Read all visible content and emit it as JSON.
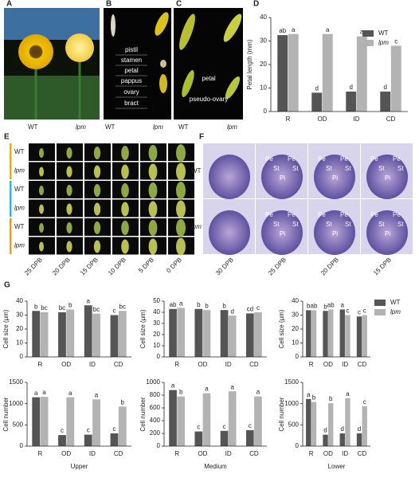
{
  "panels": {
    "A": {
      "letter": "A",
      "labels": [
        "WT",
        "lpm"
      ]
    },
    "B": {
      "letter": "B",
      "parts": [
        "pistil",
        "stamen",
        "petal",
        "pappus",
        "ovary",
        "bract"
      ],
      "labels": [
        "WT",
        "lpm"
      ]
    },
    "C": {
      "letter": "C",
      "parts": [
        "petal",
        "pseudo-ovary"
      ],
      "labels": [
        "WT",
        "lpm"
      ]
    },
    "E": {
      "letter": "E",
      "rows": [
        "WT",
        "lpm",
        "WT",
        "lpm",
        "WT",
        "lpm"
      ],
      "columns": [
        "25 DPB",
        "20 DPB",
        "15 DPB",
        "10 DPB",
        "5 DPB",
        "0 DPB"
      ]
    },
    "F": {
      "letter": "F",
      "rows": [
        "WT",
        "lpm"
      ],
      "columns": [
        "30 DPB",
        "25 DPB",
        "20 DPB",
        "15 DPB"
      ],
      "tissue_labels": [
        "Pe",
        "St",
        "Pi"
      ]
    },
    "G": {
      "letter": "G"
    }
  },
  "chart_data": [
    {
      "type": "bar",
      "letter": "D",
      "ylabel": "Petal length (mm)",
      "categories": [
        "R",
        "OD",
        "ID",
        "CD"
      ],
      "series": [
        {
          "name": "WT",
          "color": "#555555",
          "values": [
            32.5,
            8,
            8.5,
            8.5
          ],
          "letters": [
            "ab",
            "d",
            "d",
            "d"
          ]
        },
        {
          "name": "lpm",
          "color": "#b3b3b3",
          "values": [
            33,
            33,
            32,
            28
          ],
          "letters": [
            "a",
            "a",
            "a",
            "c"
          ]
        }
      ],
      "ylim": [
        0,
        40
      ],
      "yticks": [
        0,
        10,
        20,
        30,
        40
      ],
      "legend": "upper right"
    },
    {
      "type": "bar",
      "ylabel": "Cell size (μm)",
      "categories": [
        "R",
        "OD",
        "ID",
        "CD"
      ],
      "series": [
        {
          "name": "WT",
          "color": "#555555",
          "values": [
            33,
            32,
            37,
            30
          ],
          "letters": [
            "b",
            "bc",
            "a",
            "c"
          ]
        },
        {
          "name": "lpm",
          "color": "#b3b3b3",
          "values": [
            32,
            34,
            31,
            33
          ],
          "letters": [
            "bc",
            "b",
            "bc",
            "bc"
          ]
        }
      ],
      "ylim": [
        0,
        40
      ],
      "yticks": [
        0,
        10,
        20,
        30,
        40
      ]
    },
    {
      "type": "bar",
      "ylabel": "Cell size (μm)",
      "categories": [
        "R",
        "OD",
        "ID",
        "CD"
      ],
      "series": [
        {
          "name": "WT",
          "color": "#555555",
          "values": [
            43,
            43,
            42,
            39
          ],
          "letters": [
            "ab",
            "b",
            "b",
            "cd"
          ]
        },
        {
          "name": "lpm",
          "color": "#b3b3b3",
          "values": [
            44,
            42,
            37,
            40
          ],
          "letters": [
            "a",
            "b",
            "d",
            "c"
          ]
        }
      ],
      "ylim": [
        0,
        50
      ],
      "yticks": [
        0,
        10,
        20,
        30,
        40,
        50
      ]
    },
    {
      "type": "bar",
      "ylabel": "Cell size (μm)",
      "categories": [
        "R",
        "OD",
        "ID",
        "CD"
      ],
      "series": [
        {
          "name": "WT",
          "color": "#555555",
          "values": [
            33.5,
            33,
            34,
            29
          ],
          "letters": [
            "b",
            "b",
            "a",
            "c"
          ]
        },
        {
          "name": "lpm",
          "color": "#b3b3b3",
          "values": [
            33.5,
            34,
            30,
            30
          ],
          "letters": [
            "ab",
            "ab",
            "c",
            "c"
          ]
        }
      ],
      "ylim": [
        0,
        40
      ],
      "yticks": [
        0,
        10,
        20,
        30,
        40
      ],
      "legend": "upper right"
    },
    {
      "type": "bar",
      "ylabel": "Cell number",
      "xlabel": "Upper",
      "categories": [
        "R",
        "OD",
        "ID",
        "CD"
      ],
      "series": [
        {
          "name": "WT",
          "color": "#555555",
          "values": [
            1150,
            260,
            270,
            300
          ],
          "letters": [
            "a",
            "c",
            "c",
            "c"
          ]
        },
        {
          "name": "lpm",
          "color": "#b3b3b3",
          "values": [
            1160,
            1150,
            1100,
            930
          ],
          "letters": [
            "a",
            "a",
            "a",
            "b"
          ]
        }
      ],
      "ylim": [
        0,
        1500
      ],
      "yticks": [
        0,
        500,
        1000,
        1500
      ]
    },
    {
      "type": "bar",
      "ylabel": "Cell number",
      "xlabel": "Medium",
      "categories": [
        "R",
        "OD",
        "ID",
        "CD"
      ],
      "series": [
        {
          "name": "WT",
          "color": "#555555",
          "values": [
            880,
            230,
            240,
            250
          ],
          "letters": [
            "a",
            "c",
            "c",
            "c"
          ]
        },
        {
          "name": "lpm",
          "color": "#b3b3b3",
          "values": [
            780,
            830,
            860,
            780
          ],
          "letters": [
            "b",
            "a",
            "a",
            "a"
          ]
        }
      ],
      "ylim": [
        0,
        1000
      ],
      "yticks": [
        0,
        200,
        400,
        600,
        800,
        1000
      ]
    },
    {
      "type": "bar",
      "ylabel": "Cell number",
      "xlabel": "Lower",
      "categories": [
        "R",
        "OD",
        "ID",
        "CD"
      ],
      "series": [
        {
          "name": "WT",
          "color": "#555555",
          "values": [
            1110,
            270,
            300,
            300
          ],
          "letters": [
            "a",
            "d",
            "d",
            "d"
          ]
        },
        {
          "name": "lpm",
          "color": "#b3b3b3",
          "values": [
            1040,
            1010,
            1130,
            940
          ],
          "letters": [
            "b",
            "b",
            "a",
            "c"
          ]
        }
      ],
      "ylim": [
        0,
        1500
      ],
      "yticks": [
        0,
        500,
        1000,
        1500
      ]
    }
  ]
}
